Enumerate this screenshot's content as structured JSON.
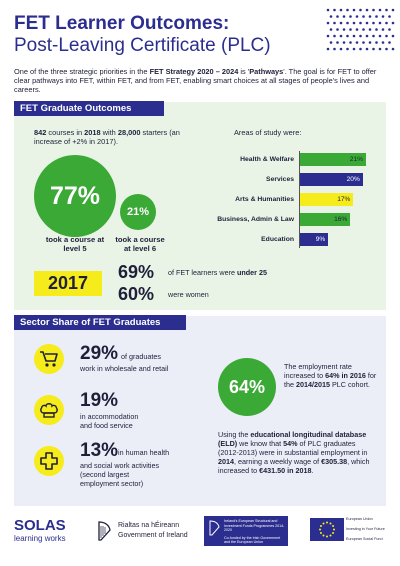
{
  "header": {
    "title_line1": "FET Learner Outcomes:",
    "title_line2": "Post-Leaving Certificate (PLC)",
    "intro_a": "One of the three strategic priorities in the ",
    "intro_strategy": "FET Strategy 2020 – 2024",
    "intro_b": " is '",
    "intro_pathways": "Pathways",
    "intro_c": "'. The goal is for FET to offer clear pathways into FET, within FET, and from FET, enabling smart choices at all stages of people's lives and careers."
  },
  "outcomes": {
    "tab": "FET Graduate Outcomes",
    "courses_num": "842",
    "courses_a": " courses in ",
    "courses_year": "2018",
    "courses_b": " with ",
    "starters": "28,000",
    "courses_c": " starters (an increase of +2% in 2017).",
    "level5_pct": "77%",
    "level5_caption": "took a course at level 5",
    "level6_pct": "21%",
    "level6_caption": "took a course at level 6",
    "year": "2017",
    "under25_pct": "69%",
    "under25_a": "of FET learners were ",
    "under25_b": "under 25",
    "women_pct": "60%",
    "women_text": "were women",
    "areas_title": "Areas of study were:"
  },
  "chart_data": {
    "type": "bar",
    "title": "Areas of study were:",
    "categories": [
      "Health & Welfare",
      "Services",
      "Arts & Humanities",
      "Business, Admin & Law",
      "Education"
    ],
    "values": [
      21,
      20,
      17,
      16,
      9
    ],
    "value_labels": [
      "21%",
      "20%",
      "17%",
      "16%",
      "9%"
    ],
    "colors": [
      "#3aa935",
      "#2b2e8f",
      "#f6ec1c",
      "#3aa935",
      "#2b2e8f"
    ],
    "text_colors": [
      "#1f1f3a",
      "#ffffff",
      "#1f1f3a",
      "#1f1f3a",
      "#ffffff"
    ],
    "orientation": "horizontal",
    "xlim": [
      0,
      21
    ],
    "grid": false
  },
  "sector": {
    "tab": "Sector Share of FET Graduates",
    "wholesale_pct": "29%",
    "wholesale_a": " of graduates",
    "wholesale_b": "work in wholesale and retail",
    "accommodation_pct": "19%",
    "accommodation_a": "in accommodation",
    "accommodation_b": "and food service",
    "health_pct": "13%",
    "health_a": " in human health",
    "health_b": "and social work activities",
    "health_c": "(second largest",
    "health_d": "employment sector)",
    "employment_pct": "64%",
    "emp_a": "The employment rate increased to ",
    "emp_b": "64% in 2016",
    "emp_c": " for the ",
    "emp_d": "2014/2015",
    "emp_e": " PLC cohort.",
    "eld_a": "Using the ",
    "eld_b": "educational longitudinal database (ELD)",
    "eld_c": " we know that ",
    "eld_d": "54%",
    "eld_e": " of PLC graduates (2012-2013) were in substantial employment in ",
    "eld_f": "2014",
    "eld_g": ", earning a weekly wage of ",
    "eld_h": "€305.38",
    "eld_i": ", which increased to ",
    "eld_j": "€431.50 in 2018",
    "eld_k": "."
  },
  "footer": {
    "solas": "SOLAS",
    "solas_sub": "learning works",
    "gov_irish": "Rialtas na hÉireann",
    "gov_english": "Government of Ireland",
    "esif_a": "Ireland's European Structural and Investment Funds Programmes 2014-2020",
    "esif_b": "Co-funded by the Irish Government and the European Union",
    "eu_a": "European Union",
    "eu_b": "Investing in Your Future",
    "eu_c": "European Social Fund"
  },
  "colors": {
    "navy": "#2b2e8f",
    "green": "#3aa935",
    "yellow": "#f6ec1c",
    "mint_bg": "#eaf4e6",
    "lavender_bg": "#ebeef7"
  }
}
